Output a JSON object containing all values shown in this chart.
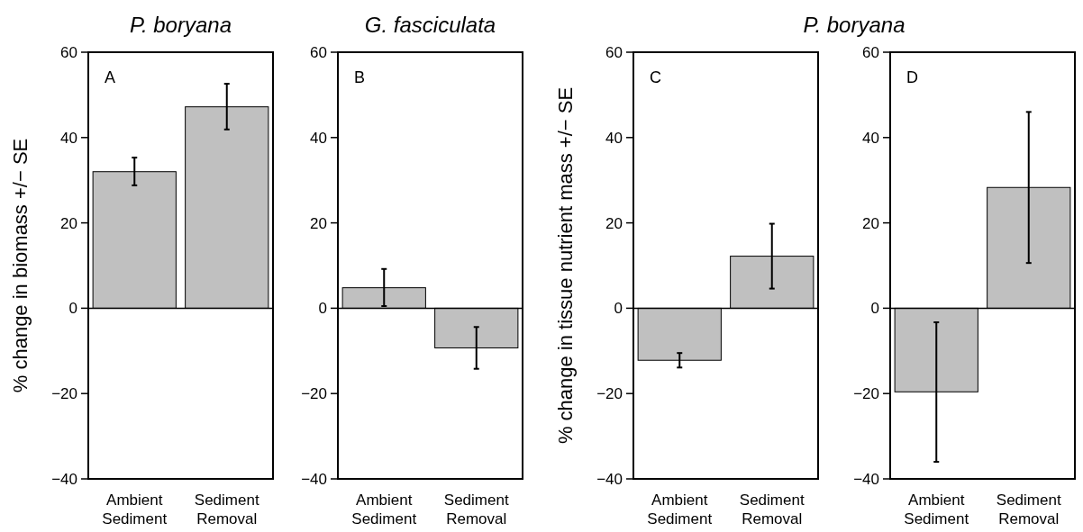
{
  "chart_data": [
    {
      "type": "bar",
      "title": "P. boryana",
      "ylabel": "% change in biomass +/− SE",
      "categories": [
        "Ambient Sediment",
        "Sediment Removal"
      ],
      "values": [
        32,
        47.2
      ],
      "errors": [
        [
          28.8,
          35.3
        ],
        [
          41.9,
          52.6
        ]
      ],
      "color": "#c0c0c0",
      "ylim": [
        -40,
        60
      ],
      "yticks": [
        -40,
        -20,
        0,
        20,
        40,
        60
      ],
      "annotations": [
        "A"
      ]
    },
    {
      "type": "bar",
      "title": "G. fasciculata",
      "categories": [
        "Ambient Sediment",
        "Sediment Removal"
      ],
      "values": [
        4.8,
        -9.3
      ],
      "errors": [
        [
          0.5,
          9.2
        ],
        [
          -14.2,
          -4.4
        ]
      ],
      "color": "#c0c0c0",
      "ylim": [
        -40,
        60
      ],
      "yticks": [
        -40,
        -20,
        0,
        20,
        40,
        60
      ],
      "annotations": [
        "B"
      ]
    },
    {
      "type": "bar",
      "title": "P. boryana",
      "ylabel": "% change in tissue nutrient mass +/− SE",
      "categories": [
        "Ambient Sediment",
        "Sediment Removal"
      ],
      "values": [
        -12.2,
        12.2
      ],
      "errors": [
        [
          -13.9,
          -10.5
        ],
        [
          4.6,
          19.8
        ]
      ],
      "color": "#c0c0c0",
      "ylim": [
        -40,
        60
      ],
      "yticks": [
        -40,
        -20,
        0,
        20,
        40,
        60
      ],
      "annotations": [
        "C"
      ]
    },
    {
      "type": "bar",
      "categories": [
        "Ambient Sediment",
        "Sediment Removal"
      ],
      "values": [
        -19.6,
        28.3
      ],
      "errors": [
        [
          -36,
          -3.3
        ],
        [
          10.6,
          46
        ]
      ],
      "color": "#c0c0c0",
      "ylim": [
        -40,
        60
      ],
      "yticks": [
        -40,
        -20,
        0,
        20,
        40,
        60
      ],
      "annotations": [
        "D"
      ]
    }
  ]
}
